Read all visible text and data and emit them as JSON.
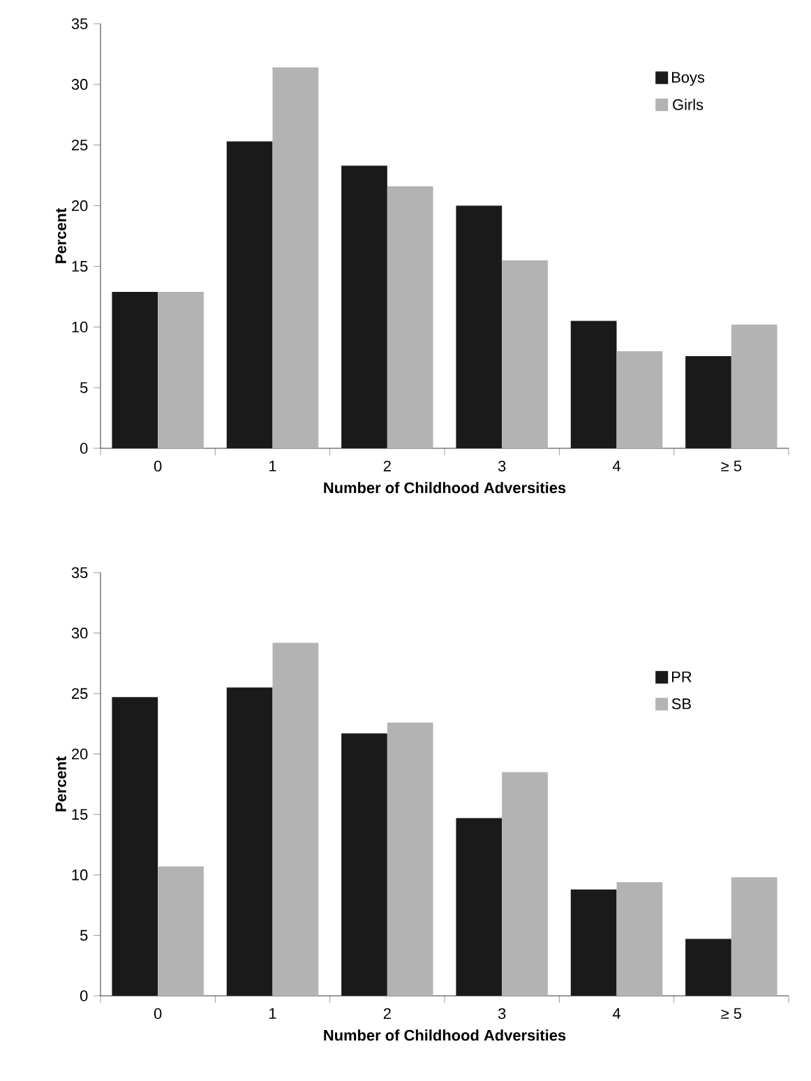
{
  "chart_data": [
    {
      "type": "bar",
      "xlabel": "Number of Childhood Adversities",
      "ylabel": "Percent",
      "categories": [
        "0",
        "1",
        "2",
        "3",
        "4",
        "≥ 5"
      ],
      "series": [
        {
          "name": "Boys",
          "color": "#1a1a1a",
          "values": [
            12.9,
            25.3,
            23.3,
            20.0,
            10.5,
            7.6
          ]
        },
        {
          "name": "Girls",
          "color": "#b3b3b3",
          "values": [
            12.9,
            31.4,
            21.6,
            15.5,
            8.0,
            10.2
          ]
        }
      ],
      "ylim": [
        0,
        35
      ],
      "yticks": [
        0,
        5,
        10,
        15,
        20,
        25,
        30,
        35
      ],
      "grid": false,
      "legend": "top right"
    },
    {
      "type": "bar",
      "xlabel": "Number of Childhood Adversities",
      "ylabel": "Percent",
      "categories": [
        "0",
        "1",
        "2",
        "3",
        "4",
        "≥ 5"
      ],
      "series": [
        {
          "name": "PR",
          "color": "#1a1a1a",
          "values": [
            24.7,
            25.5,
            21.7,
            14.7,
            8.8,
            4.7
          ]
        },
        {
          "name": "SB",
          "color": "#b3b3b3",
          "values": [
            10.7,
            29.2,
            22.6,
            18.5,
            9.4,
            9.8
          ]
        }
      ],
      "ylim": [
        0,
        35
      ],
      "yticks": [
        0,
        5,
        10,
        15,
        20,
        25,
        30,
        35
      ],
      "grid": false,
      "legend": "right"
    }
  ]
}
